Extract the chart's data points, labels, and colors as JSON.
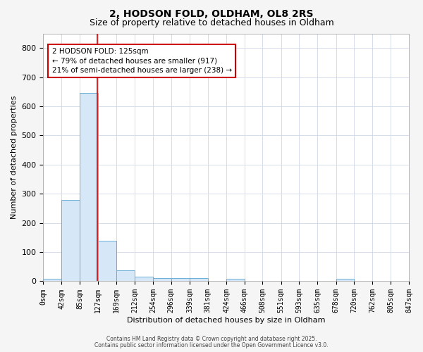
{
  "title1": "2, HODSON FOLD, OLDHAM, OL8 2RS",
  "title2": "Size of property relative to detached houses in Oldham",
  "xlabel": "Distribution of detached houses by size in Oldham",
  "ylabel": "Number of detached properties",
  "bin_edges": [
    0,
    42,
    85,
    127,
    169,
    212,
    254,
    296,
    339,
    381,
    424,
    466,
    508,
    551,
    593,
    635,
    678,
    720,
    762,
    805,
    847
  ],
  "bar_heights": [
    8,
    278,
    645,
    140,
    37,
    16,
    12,
    12,
    10,
    0,
    8,
    0,
    0,
    0,
    0,
    0,
    8,
    0,
    0,
    0
  ],
  "bar_color": "#d6e8f7",
  "bar_edge_color": "#6baed6",
  "red_line_x": 125,
  "annotation_line1": "2 HODSON FOLD: 125sqm",
  "annotation_line2": "← 79% of detached houses are smaller (917)",
  "annotation_line3": "21% of semi-detached houses are larger (238) →",
  "annotation_box_color": "#ffffff",
  "annotation_box_edge_color": "#cc0000",
  "ylim": [
    0,
    850
  ],
  "yticks": [
    0,
    100,
    200,
    300,
    400,
    500,
    600,
    700,
    800
  ],
  "bg_color": "#ffffff",
  "grid_color": "#d0d8e8",
  "fig_facecolor": "#f5f5f5",
  "footer1": "Contains HM Land Registry data © Crown copyright and database right 2025.",
  "footer2": "Contains public sector information licensed under the Open Government Licence v3.0.",
  "title1_fontsize": 10,
  "title2_fontsize": 9,
  "tick_fontsize": 7,
  "ylabel_fontsize": 8,
  "xlabel_fontsize": 8,
  "annotation_fontsize": 7.5,
  "footer_fontsize": 5.5
}
